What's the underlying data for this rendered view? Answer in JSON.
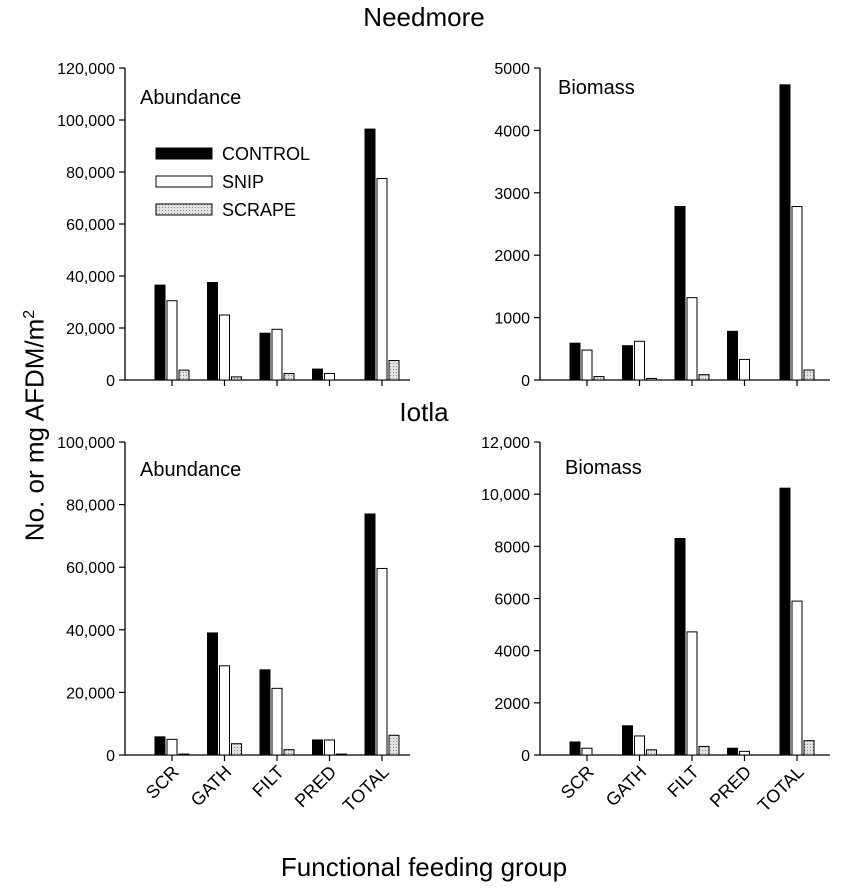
{
  "figure": {
    "ylabel": "No. or mg AFDM/m",
    "ylabel_superscript": "2",
    "xlabel": "Functional feeding group"
  },
  "sites": [
    {
      "name": "Needmore"
    },
    {
      "name": "Iotla"
    }
  ],
  "legend": {
    "placement": "inside Needmore Abundance panel, upper-left",
    "entries": [
      {
        "label": "CONTROL",
        "fill": "#000000"
      },
      {
        "label": "SNIP",
        "fill": "#ffffff"
      },
      {
        "label": "SCRAPE",
        "fill": "#d3d3d3"
      }
    ]
  },
  "chart_data": [
    {
      "type": "bar",
      "site": "Needmore",
      "title": "Abundance",
      "categories": [
        "SCR",
        "GATH",
        "FILT",
        "PRED",
        "TOTAL"
      ],
      "ylim": [
        0,
        120000
      ],
      "yticks": [
        0,
        20000,
        40000,
        60000,
        80000,
        100000,
        120000
      ],
      "ytick_labels": [
        "0",
        "20,000",
        "40,000",
        "60,000",
        "80,000",
        "100,000",
        "120,000"
      ],
      "show_xtick_labels": false,
      "series": [
        {
          "name": "CONTROL",
          "values": [
            36500,
            37500,
            18000,
            4200,
            96500
          ]
        },
        {
          "name": "SNIP",
          "values": [
            30500,
            25000,
            19500,
            2500,
            77500
          ]
        },
        {
          "name": "SCRAPE",
          "values": [
            3800,
            1200,
            2500,
            0,
            7500
          ]
        }
      ]
    },
    {
      "type": "bar",
      "site": "Needmore",
      "title": "Biomass",
      "categories": [
        "SCR",
        "GATH",
        "FILT",
        "PRED",
        "TOTAL"
      ],
      "ylim": [
        0,
        5000
      ],
      "yticks": [
        0,
        1000,
        2000,
        3000,
        4000,
        5000
      ],
      "ytick_labels": [
        "0",
        "1000",
        "2000",
        "3000",
        "4000",
        "5000"
      ],
      "show_xtick_labels": false,
      "series": [
        {
          "name": "CONTROL",
          "values": [
            590,
            550,
            2780,
            780,
            4730
          ]
        },
        {
          "name": "SNIP",
          "values": [
            480,
            620,
            1320,
            330,
            2780
          ]
        },
        {
          "name": "SCRAPE",
          "values": [
            55,
            25,
            85,
            0,
            160
          ]
        }
      ]
    },
    {
      "type": "bar",
      "site": "Iotla",
      "title": "Abundance",
      "categories": [
        "SCR",
        "GATH",
        "FILT",
        "PRED",
        "TOTAL"
      ],
      "ylim": [
        0,
        100000
      ],
      "yticks": [
        0,
        20000,
        40000,
        60000,
        80000,
        100000
      ],
      "ytick_labels": [
        "0",
        "20,000",
        "40,000",
        "60,000",
        "80,000",
        "100,000"
      ],
      "show_xtick_labels": true,
      "series": [
        {
          "name": "CONTROL",
          "values": [
            5800,
            39000,
            27200,
            4800,
            77000
          ]
        },
        {
          "name": "SNIP",
          "values": [
            5000,
            28500,
            21300,
            4800,
            59600
          ]
        },
        {
          "name": "SCRAPE",
          "values": [
            300,
            3600,
            1700,
            300,
            6300
          ]
        }
      ]
    },
    {
      "type": "bar",
      "site": "Iotla",
      "title": "Biomass",
      "categories": [
        "SCR",
        "GATH",
        "FILT",
        "PRED",
        "TOTAL"
      ],
      "ylim": [
        0,
        12000
      ],
      "yticks": [
        0,
        2000,
        4000,
        6000,
        8000,
        10000,
        12000
      ],
      "ytick_labels": [
        "0",
        "2000",
        "4000",
        "6000",
        "8000",
        "10,000",
        "12,000"
      ],
      "show_xtick_labels": true,
      "series": [
        {
          "name": "CONTROL",
          "values": [
            500,
            1120,
            8300,
            260,
            10230
          ]
        },
        {
          "name": "SNIP",
          "values": [
            260,
            730,
            4720,
            140,
            5900
          ]
        },
        {
          "name": "SCRAPE",
          "values": [
            0,
            200,
            330,
            0,
            550
          ]
        }
      ]
    }
  ]
}
